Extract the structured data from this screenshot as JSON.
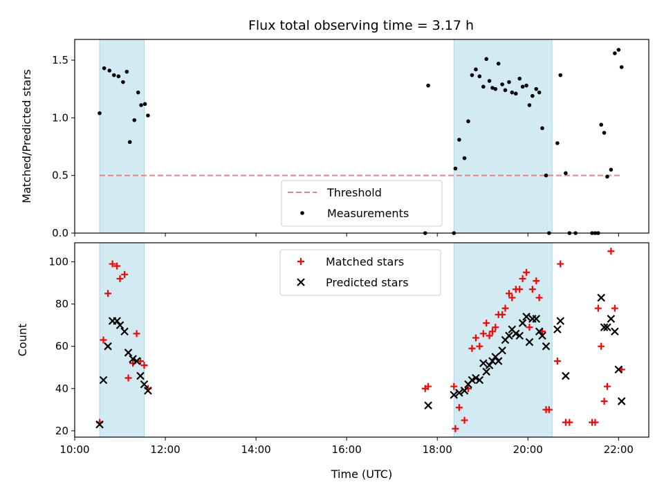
{
  "title": "Flux total observing time = 3.17 h",
  "colors": {
    "threshold": "#f08080",
    "measurement": "#000000",
    "matched": "#ff0000",
    "predicted": "#000000",
    "band": "#add8e6"
  },
  "chart_data": [
    {
      "type": "scatter",
      "name": "ratio",
      "ylabel": "Matched/Predicted stars",
      "xlabel": "",
      "xlim": [
        "10:00",
        "22:40"
      ],
      "ylim": [
        0,
        1.68
      ],
      "yticks": [
        "0.0",
        "0.5",
        "1.0",
        "1.5"
      ],
      "shaded_intervals": [
        [
          "10:33",
          "11:32"
        ],
        [
          "18:22",
          "20:32"
        ]
      ],
      "threshold": {
        "name": "Threshold",
        "value": 0.5,
        "x_range": [
          "10:33",
          "22:04"
        ]
      },
      "legend": {
        "position": "lower center",
        "entries": [
          "Threshold",
          "Measurements"
        ]
      },
      "series": [
        {
          "name": "Measurements",
          "points": [
            [
              "10:33",
              1.04
            ],
            [
              "10:39",
              1.43
            ],
            [
              "10:46",
              1.41
            ],
            [
              "10:52",
              1.37
            ],
            [
              "10:58",
              1.36
            ],
            [
              "11:04",
              1.31
            ],
            [
              "11:09",
              1.4
            ],
            [
              "11:13",
              0.79
            ],
            [
              "11:19",
              0.98
            ],
            [
              "11:24",
              1.22
            ],
            [
              "11:28",
              1.11
            ],
            [
              "11:33",
              1.12
            ],
            [
              "11:37",
              1.02
            ],
            [
              "17:44",
              0.0
            ],
            [
              "17:48",
              1.28
            ],
            [
              "18:22",
              0.0
            ],
            [
              "18:24",
              0.56
            ],
            [
              "18:29",
              0.81
            ],
            [
              "18:36",
              0.65
            ],
            [
              "18:41",
              0.97
            ],
            [
              "18:46",
              1.37
            ],
            [
              "18:51",
              1.42
            ],
            [
              "18:56",
              1.36
            ],
            [
              "19:01",
              1.27
            ],
            [
              "19:05",
              1.51
            ],
            [
              "19:09",
              1.32
            ],
            [
              "19:13",
              1.26
            ],
            [
              "19:17",
              1.25
            ],
            [
              "19:21",
              1.47
            ],
            [
              "19:26",
              1.29
            ],
            [
              "19:30",
              1.24
            ],
            [
              "19:35",
              1.31
            ],
            [
              "19:39",
              1.22
            ],
            [
              "19:44",
              1.21
            ],
            [
              "19:49",
              1.34
            ],
            [
              "19:53",
              1.27
            ],
            [
              "19:58",
              1.28
            ],
            [
              "20:02",
              1.11
            ],
            [
              "20:06",
              1.19
            ],
            [
              "20:11",
              1.25
            ],
            [
              "20:15",
              1.22
            ],
            [
              "20:19",
              0.91
            ],
            [
              "20:24",
              0.5
            ],
            [
              "20:28",
              0.0
            ],
            [
              "20:39",
              0.78
            ],
            [
              "20:43",
              1.37
            ],
            [
              "20:50",
              0.52
            ],
            [
              "20:55",
              0.0
            ],
            [
              "21:03",
              0.0
            ],
            [
              "21:25",
              0.0
            ],
            [
              "21:29",
              0.0
            ],
            [
              "21:33",
              0.0
            ],
            [
              "21:37",
              0.94
            ],
            [
              "21:41",
              0.87
            ],
            [
              "21:45",
              0.49
            ],
            [
              "21:50",
              0.55
            ],
            [
              "21:55",
              1.56
            ],
            [
              "22:00",
              1.59
            ],
            [
              "22:04",
              1.44
            ]
          ]
        }
      ]
    },
    {
      "type": "scatter",
      "name": "counts",
      "ylabel": "Count",
      "xlabel": "Time (UTC)",
      "xlim": [
        "10:00",
        "22:40"
      ],
      "ylim": [
        17,
        109
      ],
      "yticks": [
        "20",
        "40",
        "60",
        "80",
        "100"
      ],
      "xticks": [
        "10:00",
        "12:00",
        "14:00",
        "16:00",
        "18:00",
        "20:00",
        "22:00"
      ],
      "shaded_intervals": [
        [
          "10:33",
          "11:32"
        ],
        [
          "18:22",
          "20:32"
        ]
      ],
      "legend": {
        "position": "upper center",
        "entries": [
          "Matched stars",
          "Predicted stars"
        ]
      },
      "series": [
        {
          "name": "Matched stars",
          "points": [
            [
              "10:33",
              24
            ],
            [
              "10:38",
              63
            ],
            [
              "10:44",
              85
            ],
            [
              "10:50",
              99
            ],
            [
              "10:56",
              98
            ],
            [
              "11:00",
              92
            ],
            [
              "11:06",
              94
            ],
            [
              "11:11",
              45
            ],
            [
              "11:17",
              52
            ],
            [
              "11:22",
              66
            ],
            [
              "11:27",
              53
            ],
            [
              "11:32",
              51
            ],
            [
              "11:37",
              40
            ],
            [
              "17:44",
              40
            ],
            [
              "17:48",
              41
            ],
            [
              "18:22",
              41
            ],
            [
              "18:24",
              21
            ],
            [
              "18:29",
              31
            ],
            [
              "18:36",
              25
            ],
            [
              "18:41",
              40
            ],
            [
              "18:46",
              59
            ],
            [
              "18:51",
              64
            ],
            [
              "18:56",
              60
            ],
            [
              "19:01",
              66
            ],
            [
              "19:05",
              71
            ],
            [
              "19:09",
              65
            ],
            [
              "19:13",
              67
            ],
            [
              "19:17",
              69
            ],
            [
              "19:21",
              75
            ],
            [
              "19:26",
              75
            ],
            [
              "19:30",
              78
            ],
            [
              "19:35",
              85
            ],
            [
              "19:39",
              83
            ],
            [
              "19:44",
              87
            ],
            [
              "19:49",
              87
            ],
            [
              "19:53",
              92
            ],
            [
              "19:58",
              95
            ],
            [
              "20:02",
              69
            ],
            [
              "20:06",
              87
            ],
            [
              "20:11",
              91
            ],
            [
              "20:15",
              83
            ],
            [
              "20:19",
              67
            ],
            [
              "20:24",
              30
            ],
            [
              "20:28",
              30
            ],
            [
              "20:39",
              53
            ],
            [
              "20:43",
              99
            ],
            [
              "20:50",
              24
            ],
            [
              "20:55",
              24
            ],
            [
              "21:25",
              24
            ],
            [
              "21:29",
              24
            ],
            [
              "21:33",
              78
            ],
            [
              "21:37",
              60
            ],
            [
              "21:41",
              34
            ],
            [
              "21:45",
              41
            ],
            [
              "21:50",
              105
            ],
            [
              "21:55",
              78
            ],
            [
              "22:04",
              49
            ]
          ]
        },
        {
          "name": "Predicted stars",
          "points": [
            [
              "10:33",
              23
            ],
            [
              "10:38",
              44
            ],
            [
              "10:44",
              60
            ],
            [
              "10:50",
              72
            ],
            [
              "10:56",
              72
            ],
            [
              "11:00",
              70
            ],
            [
              "11:06",
              67
            ],
            [
              "11:11",
              57
            ],
            [
              "11:17",
              54
            ],
            [
              "11:22",
              53
            ],
            [
              "11:27",
              46
            ],
            [
              "11:32",
              42
            ],
            [
              "11:37",
              39
            ],
            [
              "17:48",
              32
            ],
            [
              "18:22",
              37
            ],
            [
              "18:29",
              38
            ],
            [
              "18:36",
              39
            ],
            [
              "18:41",
              42
            ],
            [
              "18:46",
              44
            ],
            [
              "18:51",
              45
            ],
            [
              "18:56",
              44
            ],
            [
              "19:01",
              52
            ],
            [
              "19:05",
              48
            ],
            [
              "19:09",
              51
            ],
            [
              "19:13",
              53
            ],
            [
              "19:17",
              55
            ],
            [
              "19:21",
              53
            ],
            [
              "19:26",
              58
            ],
            [
              "19:30",
              63
            ],
            [
              "19:35",
              65
            ],
            [
              "19:39",
              68
            ],
            [
              "19:44",
              66
            ],
            [
              "19:49",
              65
            ],
            [
              "19:53",
              71
            ],
            [
              "19:58",
              74
            ],
            [
              "20:02",
              62
            ],
            [
              "20:06",
              73
            ],
            [
              "20:11",
              73
            ],
            [
              "20:15",
              67
            ],
            [
              "20:19",
              65
            ],
            [
              "20:24",
              60
            ],
            [
              "20:39",
              68
            ],
            [
              "20:43",
              72
            ],
            [
              "20:50",
              46
            ],
            [
              "21:37",
              83
            ],
            [
              "21:41",
              69
            ],
            [
              "21:45",
              69
            ],
            [
              "21:50",
              73
            ],
            [
              "21:55",
              67
            ],
            [
              "22:00",
              49
            ],
            [
              "22:04",
              34
            ]
          ]
        }
      ]
    }
  ]
}
